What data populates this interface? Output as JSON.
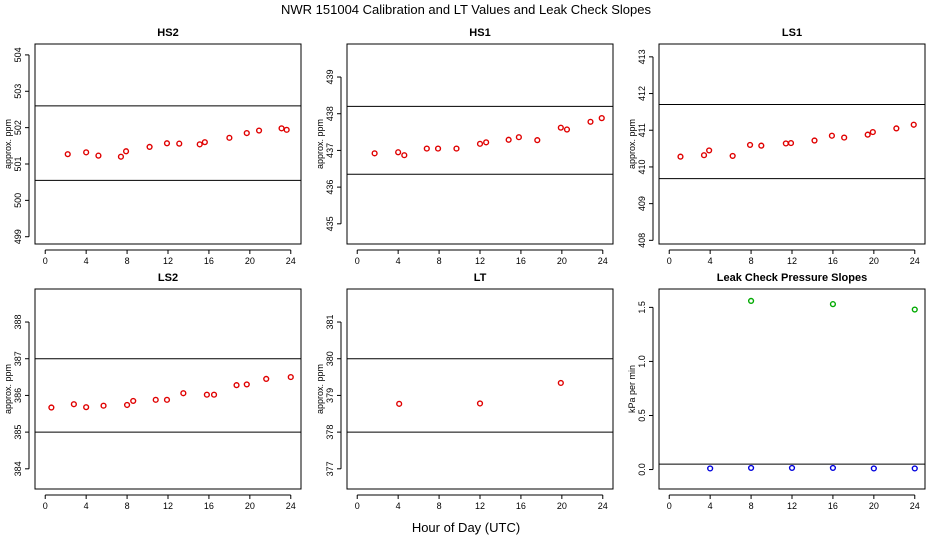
{
  "suptitle": "NWR  151004  Calibration and LT Values and Leak Check Slopes",
  "xlabel": "Hour of Day (UTC)",
  "chart_data": [
    {
      "type": "scatter",
      "title": "HS2",
      "ylabel": "approx. ppm",
      "xlim": [
        -1,
        25
      ],
      "ylim": [
        498.8,
        504.3
      ],
      "xticks": [
        "0",
        "4",
        "8",
        "12",
        "16",
        "20",
        "24"
      ],
      "yticks": [
        "499",
        "500",
        "501",
        "502",
        "503",
        "504"
      ],
      "hlines": [
        500.55,
        502.6
      ],
      "series": [
        {
          "color": "#e00000",
          "x": [
            2.2,
            4.0,
            5.2,
            7.4,
            7.9,
            10.2,
            11.9,
            13.1,
            15.1,
            15.6,
            18.0,
            19.7,
            20.9,
            23.1,
            23.6
          ],
          "y": [
            501.27,
            501.32,
            501.23,
            501.2,
            501.35,
            501.47,
            501.57,
            501.56,
            501.54,
            501.6,
            501.72,
            501.85,
            501.92,
            501.98,
            501.94
          ]
        }
      ]
    },
    {
      "type": "scatter",
      "title": "HS1",
      "ylabel": "approx. ppm",
      "xlim": [
        -1,
        25
      ],
      "ylim": [
        434.45,
        439.9
      ],
      "xticks": [
        "0",
        "4",
        "8",
        "12",
        "16",
        "20",
        "24"
      ],
      "yticks": [
        "435",
        "436",
        "437",
        "438",
        "439"
      ],
      "hlines": [
        436.35,
        438.2
      ],
      "series": [
        {
          "color": "#e00000",
          "x": [
            1.7,
            4.0,
            4.6,
            6.8,
            7.9,
            9.7,
            12.0,
            12.6,
            14.8,
            15.8,
            17.6,
            19.9,
            20.5,
            22.8,
            23.9
          ],
          "y": [
            436.92,
            436.95,
            436.87,
            437.05,
            437.05,
            437.05,
            437.18,
            437.22,
            437.29,
            437.36,
            437.28,
            437.62,
            437.57,
            437.78,
            437.88
          ]
        }
      ]
    },
    {
      "type": "scatter",
      "title": "LS1",
      "ylabel": "approx. ppm",
      "xlim": [
        -1,
        25
      ],
      "ylim": [
        407.9,
        413.35
      ],
      "xticks": [
        "0",
        "4",
        "8",
        "12",
        "16",
        "20",
        "24"
      ],
      "yticks": [
        "408",
        "409",
        "410",
        "411",
        "412",
        "413"
      ],
      "hlines": [
        409.68,
        411.7
      ],
      "series": [
        {
          "color": "#e00000",
          "x": [
            1.1,
            3.4,
            3.9,
            6.2,
            7.9,
            9.0,
            11.4,
            11.9,
            14.2,
            15.9,
            17.1,
            19.4,
            19.9,
            22.2,
            23.9
          ],
          "y": [
            410.28,
            410.32,
            410.45,
            410.3,
            410.6,
            410.58,
            410.64,
            410.65,
            410.72,
            410.85,
            410.8,
            410.88,
            410.95,
            411.05,
            411.15
          ]
        }
      ]
    },
    {
      "type": "scatter",
      "title": "LS2",
      "ylabel": "approx. ppm",
      "xlim": [
        -1,
        25
      ],
      "ylim": [
        383.45,
        388.9
      ],
      "xticks": [
        "0",
        "4",
        "8",
        "12",
        "16",
        "20",
        "24"
      ],
      "yticks": [
        "384",
        "385",
        "386",
        "387",
        "388"
      ],
      "hlines": [
        385.0,
        387.0
      ],
      "series": [
        {
          "color": "#e00000",
          "x": [
            0.6,
            2.8,
            4.0,
            5.7,
            8.0,
            8.6,
            10.8,
            11.9,
            13.5,
            15.8,
            16.5,
            18.7,
            19.7,
            21.6,
            24.0
          ],
          "y": [
            385.67,
            385.76,
            385.68,
            385.72,
            385.74,
            385.85,
            385.88,
            385.88,
            386.06,
            386.02,
            386.02,
            386.28,
            386.3,
            386.45,
            386.5
          ]
        }
      ]
    },
    {
      "type": "scatter",
      "title": "LT",
      "ylabel": "approx. ppm",
      "xlim": [
        -1,
        25
      ],
      "ylim": [
        376.45,
        381.9
      ],
      "xticks": [
        "0",
        "4",
        "8",
        "12",
        "16",
        "20",
        "24"
      ],
      "yticks": [
        "377",
        "378",
        "379",
        "380",
        "381"
      ],
      "hlines": [
        378.0,
        380.0
      ],
      "series": [
        {
          "color": "#e00000",
          "x": [
            4.1,
            12.0,
            19.9
          ],
          "y": [
            378.77,
            378.78,
            379.34
          ]
        }
      ]
    },
    {
      "type": "scatter",
      "title": "Leak Check Pressure Slopes",
      "ylabel": "kPa per min",
      "xlim": [
        -1,
        25
      ],
      "ylim": [
        -0.18,
        1.67
      ],
      "xticks": [
        "0",
        "4",
        "8",
        "12",
        "16",
        "20",
        "24"
      ],
      "yticks": [
        "0.0",
        "0.5",
        "1.0",
        "1.5"
      ],
      "hlines": [
        0.05
      ],
      "series": [
        {
          "color": "#00aa00",
          "x": [
            8.0,
            16.0,
            24.0
          ],
          "y": [
            1.56,
            1.53,
            1.48
          ]
        },
        {
          "color": "#0000dd",
          "x": [
            4.0,
            8.0,
            12.0,
            16.0,
            20.0,
            24.0
          ],
          "y": [
            0.01,
            0.015,
            0.015,
            0.015,
            0.01,
            0.01
          ]
        }
      ]
    }
  ]
}
